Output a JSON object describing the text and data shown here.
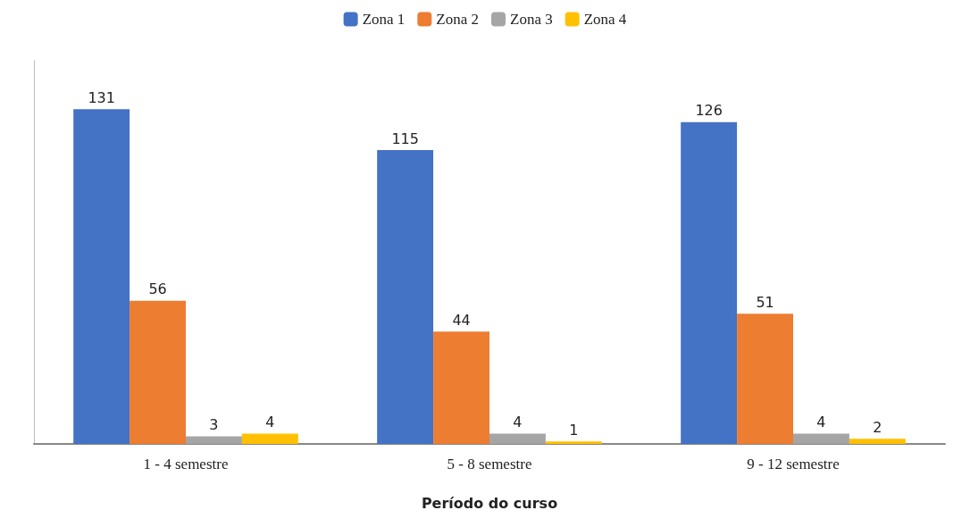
{
  "chart_data": {
    "type": "bar",
    "xlabel": "Período do curso",
    "categories": [
      "1 - 4 semestre",
      "5 - 8 semestre",
      "9 - 12 semestre"
    ],
    "series": [
      {
        "name": "Zona 1",
        "color": "#4472c4",
        "values": [
          131,
          115,
          126
        ]
      },
      {
        "name": "Zona 2",
        "color": "#ed7d31",
        "values": [
          56,
          44,
          51
        ]
      },
      {
        "name": "Zona 3",
        "color": "#a5a5a5",
        "values": [
          3,
          4,
          4
        ]
      },
      {
        "name": "Zona 4",
        "color": "#ffc000",
        "values": [
          4,
          1,
          2
        ]
      }
    ],
    "data_labels": true,
    "legend": "top",
    "grid": false
  }
}
